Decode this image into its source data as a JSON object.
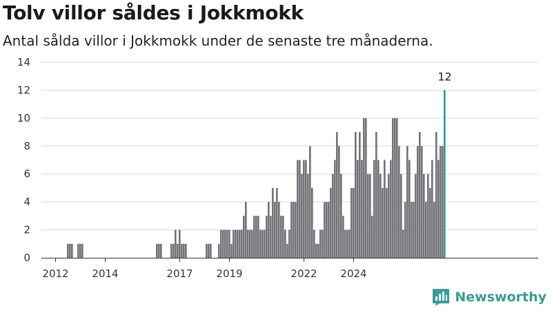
{
  "title": "Tolv villor såldes i Jokkmokk",
  "subtitle": "Antal sålda villor i Jokkmokk under de senaste tre månaderna.",
  "brand": {
    "name": "Newsworthy",
    "color": "#3a9c98"
  },
  "colors": {
    "bar": "#727278",
    "highlight": "#2a9d94",
    "grid": "#d9d9d9"
  },
  "chart_data": {
    "type": "bar",
    "title": "Tolv villor såldes i Jokkmokk",
    "subtitle": "Antal sålda villor i Jokkmokk under de senaste tre månaderna.",
    "xlabel": "",
    "ylabel": "",
    "ylim": [
      0,
      14
    ],
    "yticks": [
      0,
      2,
      4,
      6,
      8,
      10,
      12,
      14
    ],
    "xticks": [
      "2012",
      "2014",
      "2017",
      "2019",
      "2022",
      "2024"
    ],
    "grid": true,
    "x_start": "2011-07",
    "x_frequency": "monthly, rolling three-month count",
    "highlight_last": true,
    "annotations": [
      {
        "label": "12",
        "at": "last"
      }
    ],
    "values": [
      0,
      0,
      0,
      0,
      0,
      0,
      0,
      0,
      0,
      0,
      0,
      0,
      1,
      1,
      1,
      0,
      0,
      1,
      1,
      1,
      0,
      0,
      0,
      0,
      0,
      0,
      0,
      0,
      0,
      0,
      0,
      0,
      0,
      0,
      0,
      0,
      0,
      0,
      0,
      0,
      0,
      0,
      0,
      0,
      0,
      0,
      0,
      0,
      0,
      0,
      0,
      0,
      0,
      0,
      0,
      1,
      1,
      1,
      0,
      0,
      0,
      0,
      1,
      1,
      2,
      1,
      2,
      1,
      1,
      1,
      0,
      0,
      0,
      0,
      0,
      0,
      0,
      0,
      0,
      1,
      1,
      1,
      0,
      0,
      0,
      1,
      2,
      2,
      2,
      2,
      2,
      1,
      2,
      2,
      2,
      2,
      2,
      3,
      4,
      2,
      2,
      2,
      3,
      3,
      3,
      2,
      2,
      2,
      3,
      4,
      3,
      5,
      4,
      5,
      4,
      3,
      3,
      2,
      1,
      2,
      4,
      4,
      4,
      7,
      7,
      6,
      7,
      7,
      6,
      8,
      5,
      2,
      1,
      1,
      2,
      2,
      4,
      4,
      4,
      5,
      6,
      7,
      9,
      8,
      6,
      3,
      2,
      2,
      2,
      5,
      5,
      9,
      7,
      9,
      7,
      10,
      10,
      6,
      6,
      3,
      7,
      9,
      7,
      6,
      5,
      7,
      5,
      6,
      7,
      10,
      10,
      10,
      8,
      6,
      2,
      4,
      8,
      7,
      4,
      4,
      6,
      8,
      9,
      8,
      6,
      4,
      6,
      5,
      7,
      4,
      9,
      7,
      8,
      8,
      12
    ]
  }
}
